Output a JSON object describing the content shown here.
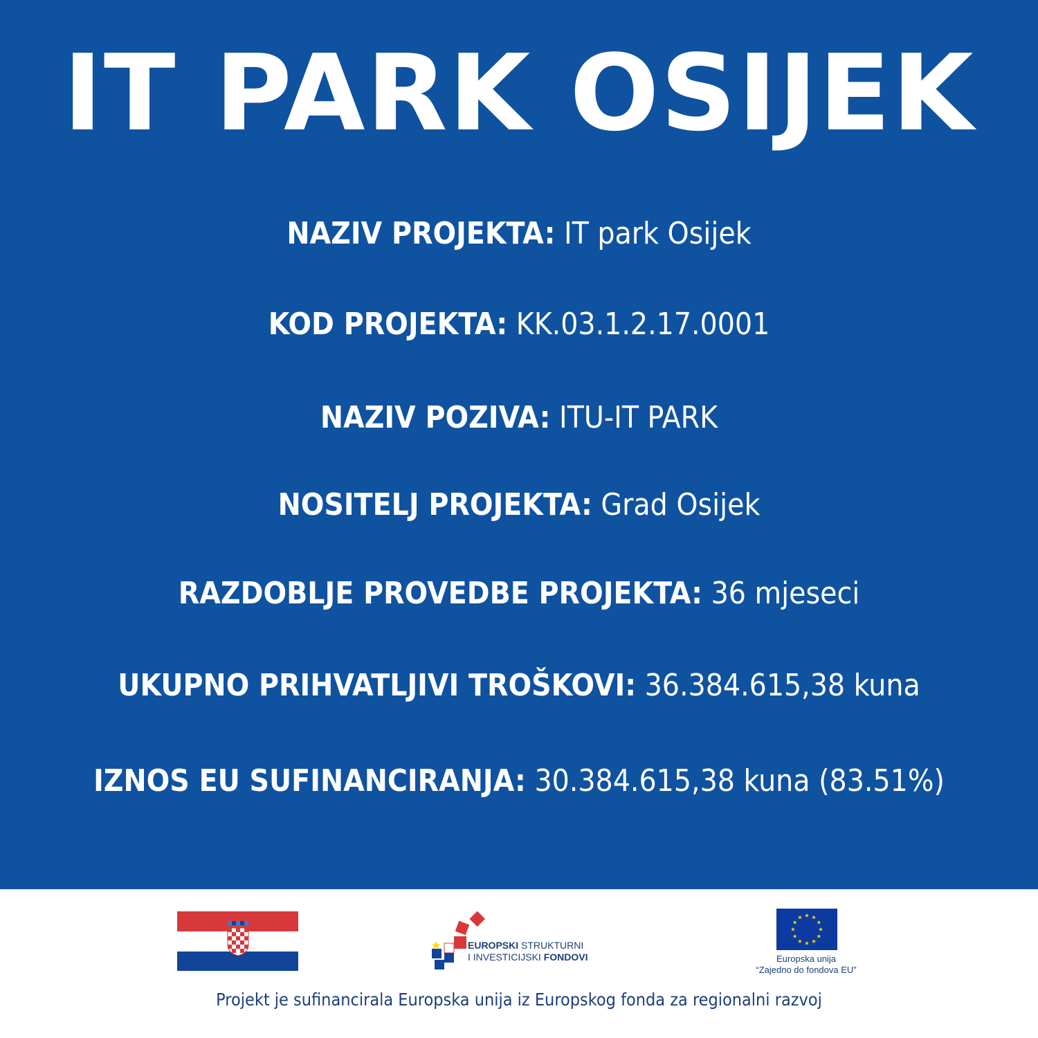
{
  "title": "IT PARK OSIJEK",
  "rows": [
    {
      "label": "NAZIV PROJEKTA:",
      "value": "IT park Osijek"
    },
    {
      "label": "KOD PROJEKTA:",
      "value": "KK.03.1.2.17.0001"
    },
    {
      "label": "NAZIV POZIVA:",
      "value": "ITU-IT PARK"
    },
    {
      "label": "NOSITELJ PROJEKTA:",
      "value": "Grad Osijek"
    },
    {
      "label": "RAZDOBLJE PROVEDBE PROJEKTA:",
      "value": "36 mjeseci"
    },
    {
      "label": "UKUPNO PRIHVATLJIVI TROŠKOVI:",
      "value": "36.384.615,38 kuna"
    },
    {
      "label": "IZNOS EU SUFINANCIRANJA:",
      "value": "30.384.615,38 kuna (83.51%)"
    }
  ],
  "footer": {
    "esif": {
      "line1_bold": "EUROPSKI",
      "line1_rest": "STRUKTURNI",
      "line2_rest": "I INVESTICIJSKI",
      "line2_bold": "FONDOVI"
    },
    "eu": {
      "line1": "Europska unija",
      "line2": "“Zajedno do fondova EU”"
    },
    "funding_note": "Projekt je sufinancirala Europska unija iz Europskog fonda za regionalni razvoj"
  },
  "colors": {
    "background": "#0f52a0",
    "text": "#ffffff",
    "footer_text": "#1d3f7a",
    "flag_red": "#d7393a",
    "flag_blue": "#12449a",
    "eu_blue": "#0c3aa0",
    "eu_star": "#ffdd00"
  }
}
